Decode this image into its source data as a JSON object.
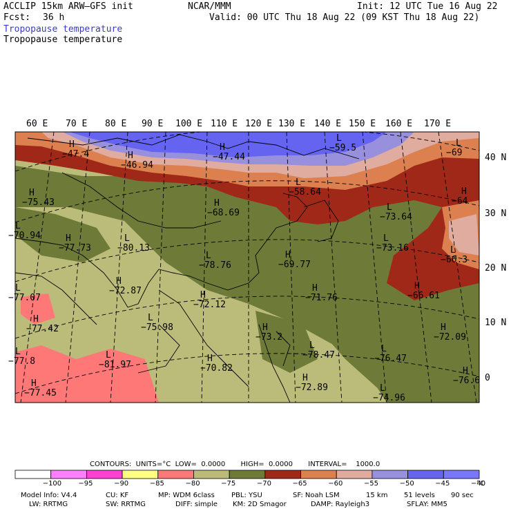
{
  "header": {
    "model": "ACCLIP 15km ARW–GFS init",
    "fcst_label": "Fcst:",
    "fcst_value": "36 h",
    "center": "NCAR/MMM",
    "init": "Init: 12 UTC Tue 16 Aug 22",
    "valid": "Valid: 00 UTC Thu 18 Aug 22 (09 KST Thu 18 Aug 22)",
    "field_shaded": "Tropopause temperature",
    "field_contour": "Tropopause temperature"
  },
  "map": {
    "lon_labels": [
      "60 E",
      "70 E",
      "80 E",
      "90 E",
      "100 E",
      "110 E",
      "120 E",
      "130 E",
      "140 E",
      "150 E",
      "160 E",
      "170 E"
    ],
    "lat_labels": [
      "40 N",
      "30 N",
      "20 N",
      "10 N",
      "0"
    ],
    "highs_lows": [
      {
        "mark": "H",
        "value": "−47.4"
      },
      {
        "mark": "H",
        "value": "−46.94"
      },
      {
        "mark": "H",
        "value": "−47.44"
      },
      {
        "mark": "L",
        "value": "−59.5"
      },
      {
        "mark": "L",
        "value": "−69"
      },
      {
        "mark": "H",
        "value": "−75.43"
      },
      {
        "mark": "H",
        "value": "−68.69"
      },
      {
        "mark": "L",
        "value": "−58.64"
      },
      {
        "mark": "L",
        "value": "−73.64"
      },
      {
        "mark": "H",
        "value": "−64"
      },
      {
        "mark": "L",
        "value": "−70.94"
      },
      {
        "mark": "H",
        "value": "−77.73"
      },
      {
        "mark": "L",
        "value": "−80.13"
      },
      {
        "mark": "L",
        "value": "−78.76"
      },
      {
        "mark": "H",
        "value": "−69.77"
      },
      {
        "mark": "L",
        "value": "−73.16"
      },
      {
        "mark": "L",
        "value": "−66.3"
      },
      {
        "mark": "H",
        "value": "−72.87"
      },
      {
        "mark": "H",
        "value": "−71.76"
      },
      {
        "mark": "H",
        "value": "−66.61"
      },
      {
        "mark": "L",
        "value": "−77.07"
      },
      {
        "mark": "H",
        "value": "−72.12"
      },
      {
        "mark": "H",
        "value": "−77.42"
      },
      {
        "mark": "L",
        "value": "−75.98"
      },
      {
        "mark": "H",
        "value": "−73.2"
      },
      {
        "mark": "H",
        "value": "−72.09"
      },
      {
        "mark": "L",
        "value": "−78.47"
      },
      {
        "mark": "L",
        "value": "−76.47"
      },
      {
        "mark": "L",
        "value": "−77.8"
      },
      {
        "mark": "L",
        "value": "−81.97"
      },
      {
        "mark": "H",
        "value": "−70.82"
      },
      {
        "mark": "H",
        "value": "−72.89"
      },
      {
        "mark": "H",
        "value": "−76.6"
      },
      {
        "mark": "H",
        "value": "−77.45"
      },
      {
        "mark": "L",
        "value": "−74.96"
      }
    ]
  },
  "contours_info": "CONTOURS:  UNITS=°C  LOW=  0.0000       HIGH=  0.0000       INTERVAL=    1000.0",
  "colorbar": {
    "colors": [
      "#ffffff",
      "#ff80ff",
      "#ff40d0",
      "#ffff80",
      "#ff7878",
      "#bcbc7a",
      "#6e7a38",
      "#a02818",
      "#dc8050",
      "#e0aca0",
      "#9890dc",
      "#6464f0",
      "#7878ff"
    ],
    "labels": [
      "−100",
      "−95",
      "−90",
      "−85",
      "−80",
      "−75",
      "−70",
      "−65",
      "−60",
      "−55",
      "−50",
      "−45",
      "−40"
    ],
    "unit": "°C"
  },
  "footer": {
    "line1": [
      "Model Info: V4.4",
      "CU: KF",
      "MP: WDM 6class",
      "PBL: YSU",
      "SF: Noah LSM",
      "15 km",
      "51 levels",
      "90 sec"
    ],
    "line2": [
      "LW: RRTMG",
      "SW: RRTMG",
      "DIFF: simple",
      "KM: 2D Smagor",
      "DAMP: Rayleigh3",
      "SFLAY: MM5"
    ]
  }
}
